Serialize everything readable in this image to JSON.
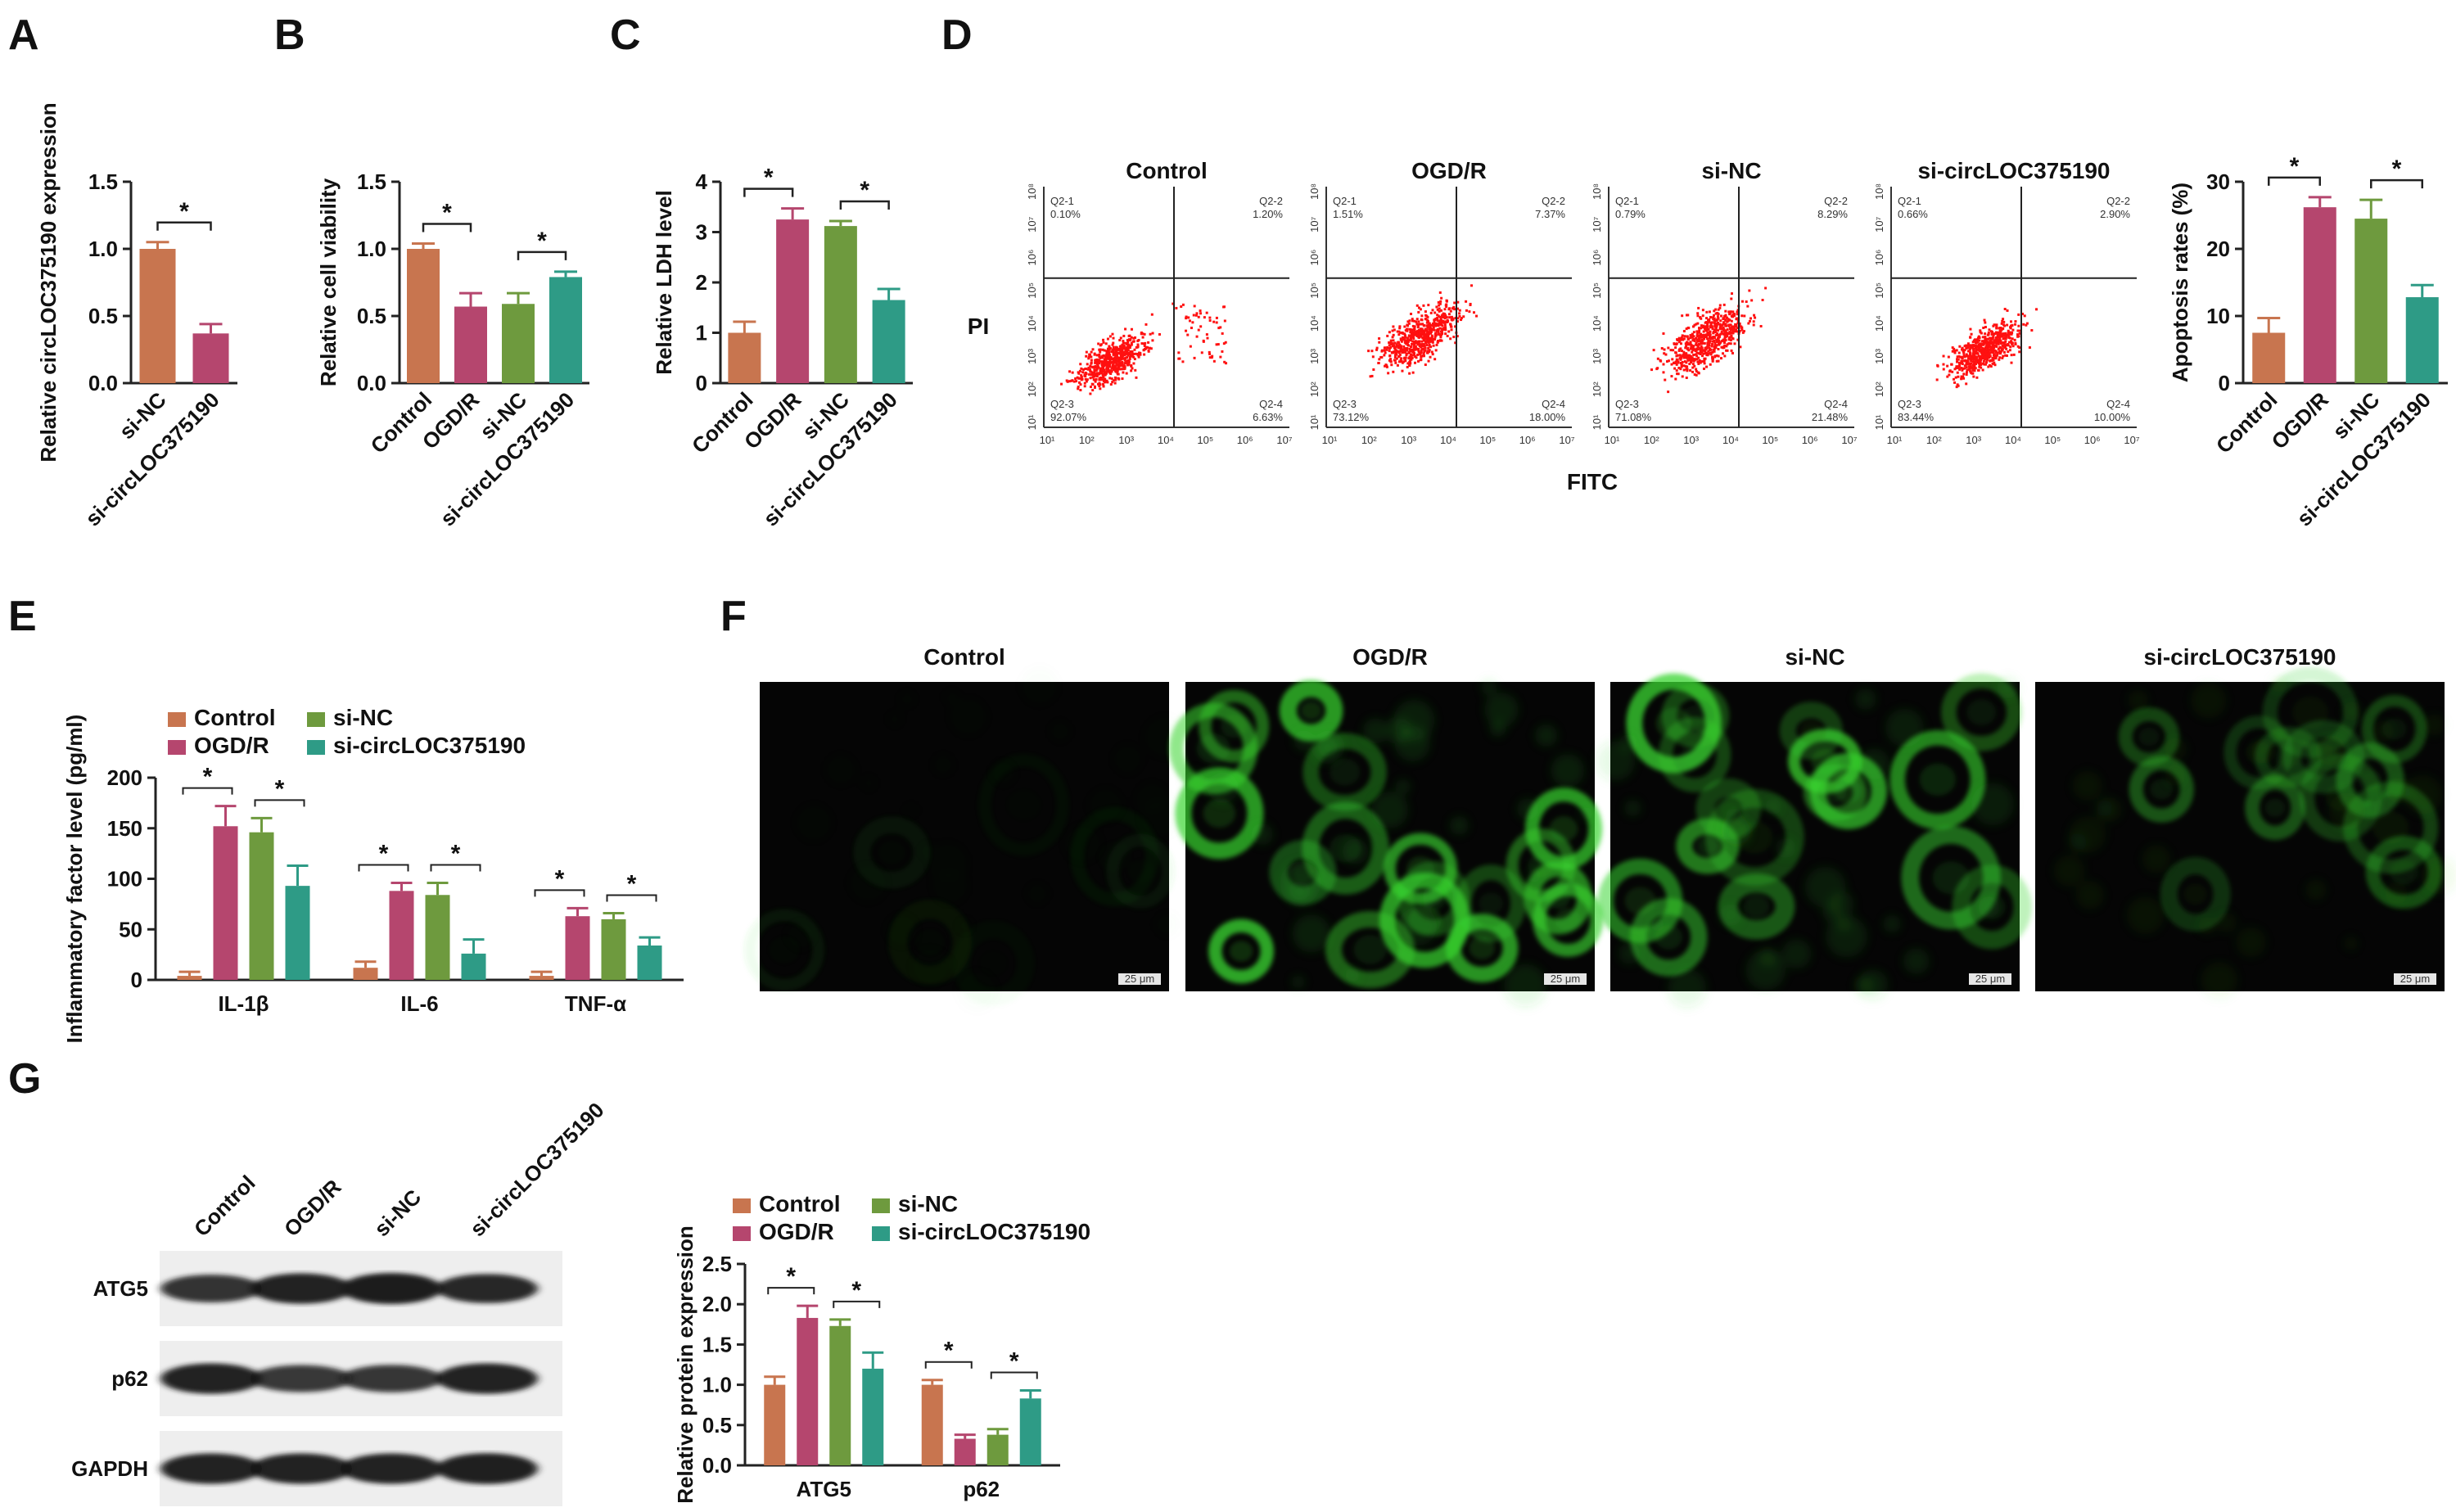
{
  "colors": {
    "control": "#C8754F",
    "ogdr": "#B5466E",
    "sinc": "#6E9A3E",
    "sicirc": "#2E9B86",
    "dots": "#ff1010",
    "fluor": "#39d52f"
  },
  "panels": {
    "A": "A",
    "B": "B",
    "C": "C",
    "D": "D",
    "E": "E",
    "F": "F",
    "G": "G"
  },
  "chart_data": [
    {
      "id": "A",
      "type": "bar",
      "ylabel": "Relative circLOC375190 expression",
      "categories": [
        "si-NC",
        "si-circLOC375190"
      ],
      "values": [
        1.0,
        0.37
      ],
      "errors": [
        0.05,
        0.07
      ],
      "colors": [
        "control",
        "ogdr"
      ],
      "yticks": [
        "0.0",
        "0.5",
        "1.0",
        "1.5"
      ],
      "ylim": [
        0,
        1.5
      ],
      "significance": [
        "*"
      ]
    },
    {
      "id": "B",
      "type": "bar",
      "ylabel": "Relative cell viability",
      "categories": [
        "Control",
        "OGD/R",
        "si-NC",
        "si-circLOC375190"
      ],
      "values": [
        1.0,
        0.57,
        0.59,
        0.79
      ],
      "errors": [
        0.04,
        0.1,
        0.08,
        0.04
      ],
      "colors": [
        "control",
        "ogdr",
        "sinc",
        "sicirc"
      ],
      "yticks": [
        "0.0",
        "0.5",
        "1.0",
        "1.5"
      ],
      "ylim": [
        0,
        1.5
      ],
      "significance": [
        "*",
        "*"
      ]
    },
    {
      "id": "C",
      "type": "bar",
      "ylabel": "Relative LDH level",
      "categories": [
        "Control",
        "OGD/R",
        "si-NC",
        "si-circLOC375190"
      ],
      "values": [
        1.0,
        3.25,
        3.12,
        1.65
      ],
      "errors": [
        0.22,
        0.22,
        0.1,
        0.22
      ],
      "colors": [
        "control",
        "ogdr",
        "sinc",
        "sicirc"
      ],
      "yticks": [
        "0",
        "1",
        "2",
        "3",
        "4"
      ],
      "ylim": [
        0,
        4
      ],
      "significance": [
        "*",
        "*"
      ]
    },
    {
      "id": "D-bar",
      "type": "bar",
      "ylabel": "Apoptosis rates (%)",
      "categories": [
        "Control",
        "OGD/R",
        "si-NC",
        "si-circLOC375190"
      ],
      "values": [
        7.5,
        26.2,
        24.5,
        12.8
      ],
      "errors": [
        2.2,
        1.5,
        2.8,
        1.8
      ],
      "colors": [
        "control",
        "ogdr",
        "sinc",
        "sicirc"
      ],
      "yticks": [
        "0",
        "10",
        "20",
        "30"
      ],
      "ylim": [
        0,
        30
      ],
      "significance": [
        "*",
        "*"
      ]
    },
    {
      "id": "D-flow",
      "type": "scatter",
      "xlabel": "FITC",
      "ylabel": "PI",
      "plots": [
        {
          "title": "Control",
          "q1": "Q2-1",
          "q1v": "0.10%",
          "q2": "Q2-2",
          "q2v": "1.20%",
          "q3": "Q2-3",
          "q3v": "92.07%",
          "q4": "Q2-4",
          "q4v": "6.63%"
        },
        {
          "title": "OGD/R",
          "q1": "Q2-1",
          "q1v": "1.51%",
          "q2": "Q2-2",
          "q2v": "7.37%",
          "q3": "Q2-3",
          "q3v": "73.12%",
          "q4": "Q2-4",
          "q4v": "18.00%"
        },
        {
          "title": "si-NC",
          "q1": "Q2-1",
          "q1v": "0.79%",
          "q2": "Q2-2",
          "q2v": "8.29%",
          "q3": "Q2-3",
          "q3v": "71.08%",
          "q4": "Q2-4",
          "q4v": "21.48%"
        },
        {
          "title": "si-circLOC375190",
          "q1": "Q2-1",
          "q1v": "0.66%",
          "q2": "Q2-2",
          "q2v": "2.90%",
          "q3": "Q2-3",
          "q3v": "83.44%",
          "q4": "Q2-4",
          "q4v": "10.00%"
        }
      ]
    },
    {
      "id": "E",
      "type": "bar",
      "ylabel": "Inflammatory factor level (pg/ml)",
      "categories": [
        "IL-1β",
        "IL-6",
        "TNF-α"
      ],
      "series": [
        {
          "name": "Control",
          "color": "control",
          "values": [
            4,
            12,
            4
          ],
          "errors": [
            4,
            6,
            4
          ]
        },
        {
          "name": "OGD/R",
          "color": "ogdr",
          "values": [
            152,
            88,
            63
          ],
          "errors": [
            20,
            8,
            8
          ]
        },
        {
          "name": "si-NC",
          "color": "sinc",
          "values": [
            146,
            84,
            60
          ],
          "errors": [
            14,
            12,
            6
          ]
        },
        {
          "name": "si-circLOC375190",
          "color": "sicirc",
          "values": [
            93,
            26,
            34
          ],
          "errors": [
            20,
            14,
            8
          ]
        }
      ],
      "yticks": [
        "0",
        "50",
        "100",
        "150",
        "200"
      ],
      "ylim": [
        0,
        200
      ],
      "legend": "top",
      "significance": [
        "*",
        "*"
      ]
    },
    {
      "id": "G",
      "type": "bar",
      "ylabel": "Relative protein expression",
      "categories": [
        "ATG5",
        "p62"
      ],
      "series": [
        {
          "name": "Control",
          "color": "control",
          "values": [
            1.0,
            1.0
          ],
          "errors": [
            0.1,
            0.06
          ]
        },
        {
          "name": "OGD/R",
          "color": "ogdr",
          "values": [
            1.83,
            0.33
          ],
          "errors": [
            0.15,
            0.05
          ]
        },
        {
          "name": "si-NC",
          "color": "sinc",
          "values": [
            1.73,
            0.38
          ],
          "errors": [
            0.08,
            0.07
          ]
        },
        {
          "name": "si-circLOC375190",
          "color": "sicirc",
          "values": [
            1.2,
            0.83
          ],
          "errors": [
            0.2,
            0.1
          ]
        }
      ],
      "yticks": [
        "0.0",
        "0.5",
        "1.0",
        "1.5",
        "2.0",
        "2.5"
      ],
      "ylim": [
        0,
        2.5
      ],
      "legend": "top",
      "significance": [
        "*",
        "*"
      ]
    }
  ],
  "flowAxis": {
    "xticks": [
      "10¹",
      "10²",
      "10³",
      "10⁴",
      "10⁵",
      "10⁶",
      "10⁷"
    ],
    "yticks": [
      "10¹",
      "10²",
      "10³",
      "10⁴",
      "10⁵",
      "10⁶",
      "10⁷",
      "10⁸"
    ]
  },
  "fluorescence": {
    "titles": [
      "Control",
      "OGD/R",
      "si-NC",
      "si-circLOC375190"
    ],
    "scalebar": "25 μm",
    "intensity": [
      0.12,
      1.0,
      0.95,
      0.55
    ]
  },
  "westernBlot": {
    "lanes": [
      "Control",
      "OGD/R",
      "si-NC",
      "si-circLOC375190"
    ],
    "rows": [
      {
        "label": "ATG5",
        "intensity": [
          0.75,
          0.95,
          1.0,
          0.85
        ]
      },
      {
        "label": "p62",
        "intensity": [
          0.95,
          0.7,
          0.72,
          0.95
        ]
      },
      {
        "label": "GAPDH",
        "intensity": [
          0.95,
          0.95,
          0.95,
          0.98
        ]
      }
    ]
  }
}
